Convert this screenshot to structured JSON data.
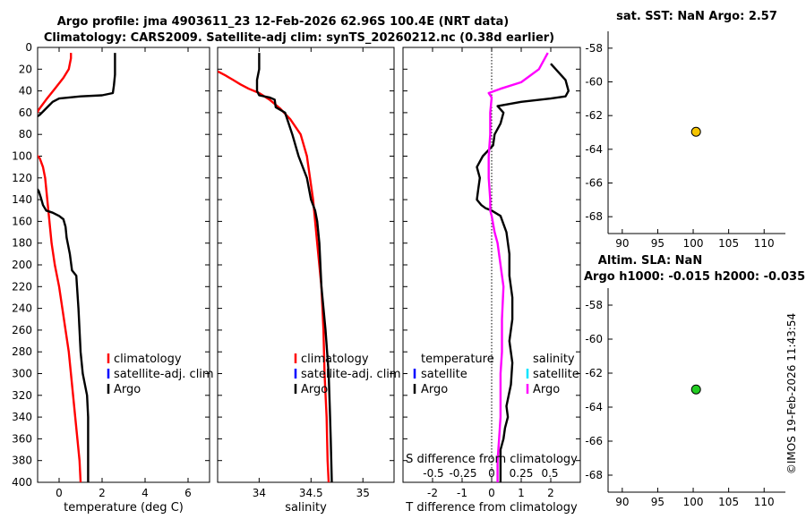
{
  "titles": {
    "line1": "Argo profile: jma 4903611_23 12-Feb-2026 62.96S 100.4E (NRT data)",
    "line2": "Climatology: CARS2009. Satellite-adj clim: synTS_20260212.nc (0.38d earlier)"
  },
  "side_text": "©IMOS 19-Feb-2026 11:43:54",
  "chart_data": [
    {
      "type": "line",
      "name": "temperature",
      "xlabel": "temperature (deg C)",
      "xlim": [
        -1,
        7
      ],
      "xticks": [
        0,
        2,
        4,
        6
      ],
      "ylim": [
        0,
        400
      ],
      "yticks": [
        0,
        20,
        40,
        60,
        80,
        100,
        120,
        140,
        160,
        180,
        200,
        220,
        240,
        260,
        280,
        300,
        320,
        340,
        360,
        380,
        400
      ],
      "legend": [
        "climatology",
        "satellite-adj. clim",
        "Argo"
      ],
      "series": [
        {
          "name": "climatology",
          "color": "#ff0000",
          "x": [
            0.55,
            0.55,
            0.5,
            0.45,
            0.2,
            -0.2,
            -0.6,
            -0.9,
            -1.1
          ],
          "y": [
            5,
            10,
            15,
            20,
            28,
            38,
            48,
            56,
            62
          ]
        },
        {
          "name": "climatology",
          "color": "#ff0000",
          "x": [
            -1.1,
            -0.9,
            -0.75,
            -0.65,
            -0.55,
            -0.45,
            -0.35,
            -0.2,
            0.0,
            0.15,
            0.3,
            0.45,
            0.55,
            0.65,
            0.75,
            0.85,
            0.95,
            1.0
          ],
          "y": [
            98,
            102,
            110,
            120,
            140,
            160,
            180,
            200,
            220,
            240,
            260,
            280,
            300,
            320,
            340,
            360,
            380,
            400
          ]
        },
        {
          "name": "Argo",
          "color": "#000000",
          "x": [
            2.6,
            2.6,
            2.6,
            2.55,
            2.5,
            2.0,
            1.0,
            0.0,
            -0.3,
            -0.5,
            -0.7,
            -0.9,
            -1.05
          ],
          "y": [
            5,
            15,
            25,
            35,
            42,
            44,
            45,
            47,
            50,
            54,
            58,
            62,
            64
          ]
        },
        {
          "name": "Argo",
          "color": "#000000",
          "x": [
            -1.1,
            -0.95,
            -0.85,
            -0.75,
            -0.6,
            -0.3,
            0.0,
            0.2,
            0.3,
            0.35,
            0.4,
            0.5,
            0.6,
            0.8,
            0.85,
            0.9,
            0.95,
            1.0,
            1.1,
            1.3,
            1.35,
            1.35,
            1.35,
            1.35
          ],
          "y": [
            128,
            132,
            138,
            145,
            150,
            152,
            155,
            158,
            165,
            175,
            180,
            190,
            205,
            210,
            225,
            240,
            260,
            280,
            300,
            320,
            340,
            350,
            380,
            400
          ]
        }
      ]
    },
    {
      "type": "line",
      "name": "salinity",
      "xlabel": "salinity",
      "xlim": [
        33.6,
        35.3
      ],
      "xticks": [
        34,
        34.5,
        35
      ],
      "xticklabels": [
        "34",
        "34.5",
        "35"
      ],
      "ylim": [
        0,
        400
      ],
      "legend": [
        "climatology",
        "satellite-adj. clim",
        "Argo"
      ],
      "series": [
        {
          "name": "climatology",
          "color": "#ff0000",
          "x": [
            33.6,
            33.68,
            33.75,
            33.82,
            33.9,
            34.0,
            34.1,
            34.2,
            34.3,
            34.4,
            34.46,
            34.52,
            34.56,
            34.6,
            34.62,
            34.63,
            34.65,
            34.66,
            34.67
          ],
          "y": [
            22,
            26,
            30,
            34,
            38,
            42,
            48,
            56,
            66,
            80,
            100,
            140,
            180,
            220,
            260,
            300,
            340,
            380,
            400
          ]
        },
        {
          "name": "Argo",
          "color": "#000000",
          "x": [
            34.0,
            34.0,
            33.98,
            33.98,
            34.0,
            34.1,
            34.15,
            34.16,
            34.25,
            34.32,
            34.38,
            34.46,
            34.5,
            34.52,
            34.54,
            34.56,
            34.58,
            34.6,
            34.64,
            34.67,
            34.68,
            34.69,
            34.7
          ],
          "y": [
            5,
            20,
            30,
            40,
            44,
            46,
            48,
            55,
            60,
            80,
            100,
            120,
            140,
            145,
            150,
            160,
            180,
            220,
            260,
            300,
            330,
            360,
            400
          ]
        }
      ]
    },
    {
      "type": "line",
      "name": "difference",
      "xlabel": "T difference from climatology",
      "xlim": [
        -3,
        3
      ],
      "xticks": [
        -2,
        -1,
        0,
        1,
        2
      ],
      "ylim": [
        0,
        400
      ],
      "secondary_axis_title": "S difference from climatology",
      "secondary_ticks": [
        "-0.5",
        "-0.25",
        "0",
        "0.25",
        "0.5"
      ],
      "legend_t_title": "temperature",
      "legend_t": [
        "satellite",
        "Argo"
      ],
      "legend_s_title": "salinity",
      "legend_s": [
        "satellite",
        "Argo"
      ],
      "series": [
        {
          "name": "T Argo",
          "color": "#000000",
          "x": [
            2.0,
            2.5,
            2.6,
            2.5,
            2.0,
            1.0,
            0.2,
            0.4,
            0.3,
            0.1,
            0.05,
            -0.3,
            -0.5,
            -0.4,
            -0.45,
            -0.5,
            -0.35,
            -0.2,
            0.0,
            0.3,
            0.5,
            0.6,
            0.6,
            0.7,
            0.7,
            0.6,
            0.7,
            0.65,
            0.5,
            0.55,
            0.45,
            0.4,
            0.3,
            0.3,
            0.3
          ],
          "y": [
            15,
            30,
            40,
            45,
            47,
            50,
            54,
            60,
            70,
            80,
            90,
            100,
            110,
            120,
            130,
            140,
            145,
            148,
            150,
            155,
            170,
            190,
            210,
            230,
            250,
            270,
            290,
            310,
            330,
            340,
            350,
            360,
            370,
            385,
            400
          ]
        },
        {
          "name": "S Argo",
          "color": "#ff00ff",
          "x": [
            1.9,
            1.6,
            1.0,
            0.3,
            -0.1,
            0.0,
            -0.05,
            -0.05,
            -0.1,
            -0.1,
            -0.05,
            -0.05,
            0.0,
            0.1,
            0.2,
            0.3,
            0.4,
            0.35,
            0.35,
            0.3,
            0.3,
            0.25,
            0.2,
            0.2
          ],
          "y": [
            5,
            20,
            32,
            38,
            42,
            46,
            60,
            80,
            100,
            120,
            140,
            150,
            155,
            170,
            180,
            200,
            220,
            250,
            280,
            300,
            340,
            360,
            380,
            400
          ]
        }
      ]
    },
    {
      "type": "scatter",
      "name": "sst-map",
      "title": "sat. SST: NaN Argo: 2.57",
      "xlim": [
        88,
        113
      ],
      "xticks": [
        90,
        95,
        100,
        105,
        110
      ],
      "ylim": [
        -69,
        -57
      ],
      "yticks": [
        -58,
        -60,
        -62,
        -64,
        -66,
        -68
      ],
      "points": [
        {
          "x": 100.4,
          "y": -62.96,
          "color": "#f5c400"
        }
      ]
    },
    {
      "type": "scatter",
      "name": "sla-map",
      "title": "Altim. SLA: NaN",
      "subtitle": "Argo h1000: -0.015 h2000: -0.035",
      "xlim": [
        88,
        113
      ],
      "xticks": [
        90,
        95,
        100,
        105,
        110
      ],
      "ylim": [
        -69,
        -57
      ],
      "yticks": [
        -58,
        -60,
        -62,
        -64,
        -66,
        -68
      ],
      "points": [
        {
          "x": 100.4,
          "y": -62.96,
          "color": "#22cc22"
        }
      ]
    }
  ]
}
